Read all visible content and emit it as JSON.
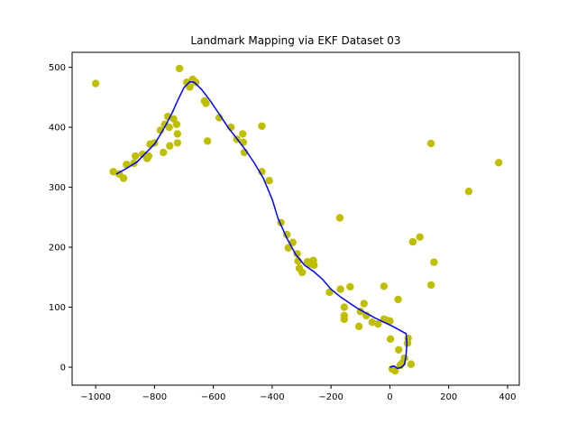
{
  "chart_data": {
    "type": "scatter",
    "title": "Landmark Mapping via EKF Dataset 03",
    "xlabel": "",
    "ylabel": "",
    "xlim": [
      -1080,
      440
    ],
    "ylim": [
      -30,
      525
    ],
    "xticks": [
      -1000,
      -800,
      -600,
      -400,
      -200,
      0,
      200,
      400
    ],
    "yticks": [
      0,
      100,
      200,
      300,
      400,
      500
    ],
    "grid": false,
    "legend": "none",
    "series": [
      {
        "kind": "scatter",
        "color": "#bfbf00",
        "points": [
          [
            -1000,
            473
          ],
          [
            -940,
            326
          ],
          [
            -920,
            322
          ],
          [
            -905,
            315
          ],
          [
            -895,
            338
          ],
          [
            -870,
            340
          ],
          [
            -865,
            352
          ],
          [
            -840,
            355
          ],
          [
            -825,
            348
          ],
          [
            -820,
            352
          ],
          [
            -815,
            372
          ],
          [
            -800,
            374
          ],
          [
            -780,
            395
          ],
          [
            -770,
            358
          ],
          [
            -765,
            405
          ],
          [
            -755,
            418
          ],
          [
            -750,
            400
          ],
          [
            -748,
            369
          ],
          [
            -735,
            414
          ],
          [
            -725,
            405
          ],
          [
            -722,
            389
          ],
          [
            -722,
            374
          ],
          [
            -715,
            498
          ],
          [
            -690,
            475
          ],
          [
            -680,
            467
          ],
          [
            -670,
            480
          ],
          [
            -660,
            475
          ],
          [
            -630,
            444
          ],
          [
            -625,
            440
          ],
          [
            -620,
            377
          ],
          [
            -580,
            416
          ],
          [
            -540,
            400
          ],
          [
            -520,
            380
          ],
          [
            -500,
            389
          ],
          [
            -498,
            375
          ],
          [
            -495,
            358
          ],
          [
            -435,
            326
          ],
          [
            -435,
            402
          ],
          [
            -410,
            311
          ],
          [
            -370,
            241
          ],
          [
            -350,
            221
          ],
          [
            -345,
            199
          ],
          [
            -330,
            208
          ],
          [
            -315,
            189
          ],
          [
            -312,
            177
          ],
          [
            -308,
            165
          ],
          [
            -298,
            158
          ],
          [
            -280,
            176
          ],
          [
            -270,
            172
          ],
          [
            -260,
            178
          ],
          [
            -258,
            170
          ],
          [
            -205,
            125
          ],
          [
            -170,
            249
          ],
          [
            -168,
            130
          ],
          [
            -155,
            100
          ],
          [
            -155,
            86
          ],
          [
            -155,
            80
          ],
          [
            -135,
            134
          ],
          [
            -105,
            68
          ],
          [
            -100,
            93
          ],
          [
            -88,
            106
          ],
          [
            -80,
            86
          ],
          [
            -60,
            75
          ],
          [
            -40,
            72
          ],
          [
            -20,
            135
          ],
          [
            -20,
            80
          ],
          [
            -10,
            78
          ],
          [
            0,
            77
          ],
          [
            2,
            47
          ],
          [
            8,
            -3
          ],
          [
            18,
            -6
          ],
          [
            28,
            113
          ],
          [
            30,
            29
          ],
          [
            35,
            3
          ],
          [
            42,
            7
          ],
          [
            50,
            15
          ],
          [
            60,
            40
          ],
          [
            62,
            48
          ],
          [
            72,
            5
          ],
          [
            78,
            209
          ],
          [
            102,
            217
          ],
          [
            140,
            373
          ],
          [
            140,
            137
          ],
          [
            150,
            175
          ],
          [
            268,
            293
          ],
          [
            370,
            341
          ]
        ]
      },
      {
        "kind": "line",
        "color": "#0000ff",
        "points": [
          [
            -930,
            322
          ],
          [
            -900,
            330
          ],
          [
            -860,
            342
          ],
          [
            -830,
            357
          ],
          [
            -800,
            372
          ],
          [
            -780,
            388
          ],
          [
            -760,
            405
          ],
          [
            -740,
            424
          ],
          [
            -720,
            446
          ],
          [
            -700,
            466
          ],
          [
            -680,
            476
          ],
          [
            -665,
            475
          ],
          [
            -640,
            463
          ],
          [
            -610,
            444
          ],
          [
            -580,
            422
          ],
          [
            -550,
            400
          ],
          [
            -520,
            381
          ],
          [
            -490,
            362
          ],
          [
            -460,
            340
          ],
          [
            -430,
            315
          ],
          [
            -400,
            280
          ],
          [
            -380,
            248
          ],
          [
            -350,
            215
          ],
          [
            -320,
            188
          ],
          [
            -290,
            170
          ],
          [
            -260,
            160
          ],
          [
            -230,
            147
          ],
          [
            -200,
            130
          ],
          [
            -170,
            118
          ],
          [
            -140,
            108
          ],
          [
            -110,
            98
          ],
          [
            -80,
            90
          ],
          [
            -50,
            82
          ],
          [
            -20,
            75
          ],
          [
            10,
            68
          ],
          [
            40,
            60
          ],
          [
            55,
            56
          ],
          [
            58,
            40
          ],
          [
            55,
            20
          ],
          [
            50,
            5
          ],
          [
            40,
            0
          ],
          [
            25,
            -2
          ],
          [
            15,
            2
          ],
          [
            0,
            0
          ]
        ]
      }
    ]
  }
}
